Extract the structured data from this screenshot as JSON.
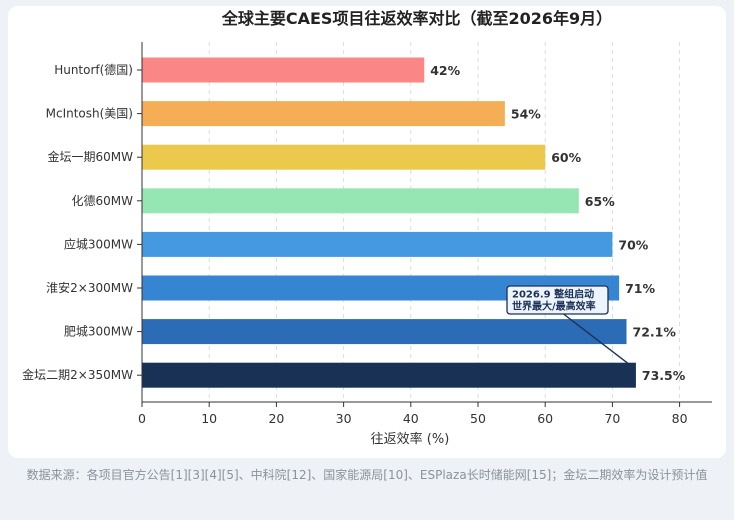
{
  "chart_data": {
    "type": "bar",
    "orientation": "horizontal",
    "title": "全球主要CAES项目往返效率对比（截至2026年9月）",
    "xlabel": "往返效率 (%)",
    "ylabel": "",
    "xlim": [
      0,
      80
    ],
    "xticks": [
      0,
      10,
      20,
      30,
      40,
      50,
      60,
      70,
      80
    ],
    "grid": "vertical dashed",
    "categories": [
      "Huntorf(德国)",
      "McIntosh(美国)",
      "金坛一期60MW",
      "化德60MW",
      "应城300MW",
      "淮安2×300MW",
      "肥城300MW",
      "金坛二期2×350MW"
    ],
    "values": [
      42,
      54,
      60,
      65,
      70,
      71,
      72.1,
      73.5
    ],
    "value_labels": [
      "42%",
      "54%",
      "60%",
      "65%",
      "70%",
      "71%",
      "72.1%",
      "73.5%"
    ],
    "colors": [
      "#fa8785",
      "#f5ae56",
      "#ebc94d",
      "#96e6b3",
      "#4499e1",
      "#3585d2",
      "#2c6bb5",
      "#1a3156"
    ],
    "annotation": {
      "target": "金坛二期2×350MW",
      "lines": [
        "2026.9 整组启动",
        "世界最大/最高效率"
      ]
    }
  },
  "source_note": "数据来源：各项目官方公告[1][3][4][5]、中科院[12]、国家能源局[10]、ESPlaza长时储能网[15]；金坛二期效率为设计预计值"
}
